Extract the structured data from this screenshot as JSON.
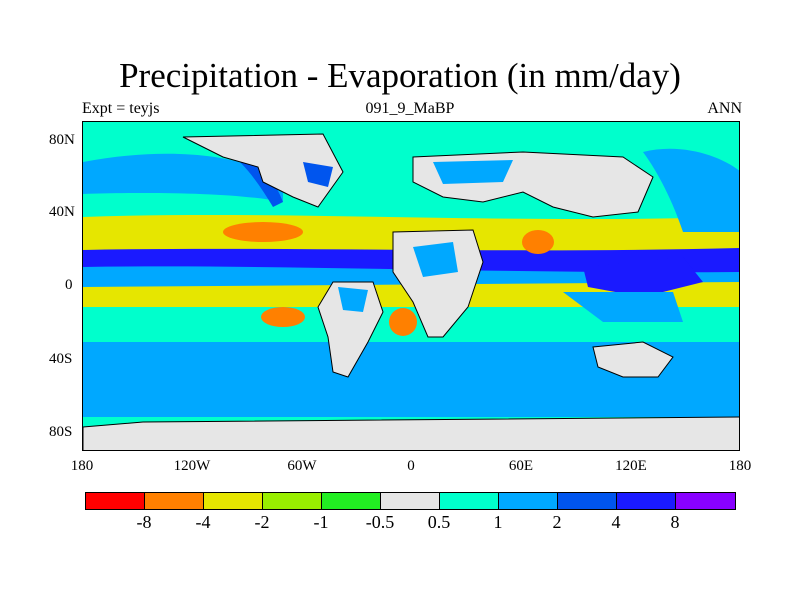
{
  "title": "Precipitation - Evaporation (in mm/day)",
  "subtitle_left": "Expt = teyjs",
  "subtitle_center": "091_9_MaBP",
  "subtitle_right": "ANN",
  "y_ticks": [
    "80N",
    "40N",
    "0",
    "40S",
    "80S"
  ],
  "x_ticks": [
    "180",
    "120W",
    "60W",
    "0",
    "60E",
    "120E",
    "180"
  ],
  "colorbar": {
    "colors": [
      "#ff0000",
      "#ff8000",
      "#e6e600",
      "#99ee00",
      "#22ee22",
      "#e6e6e6",
      "#00ffcc",
      "#00a8ff",
      "#0055ee",
      "#1a1aff",
      "#8800ff"
    ],
    "labels": [
      "-8",
      "-4",
      "-2",
      "-1",
      "-0.5",
      "0.5",
      "1",
      "2",
      "4",
      "8"
    ]
  }
}
